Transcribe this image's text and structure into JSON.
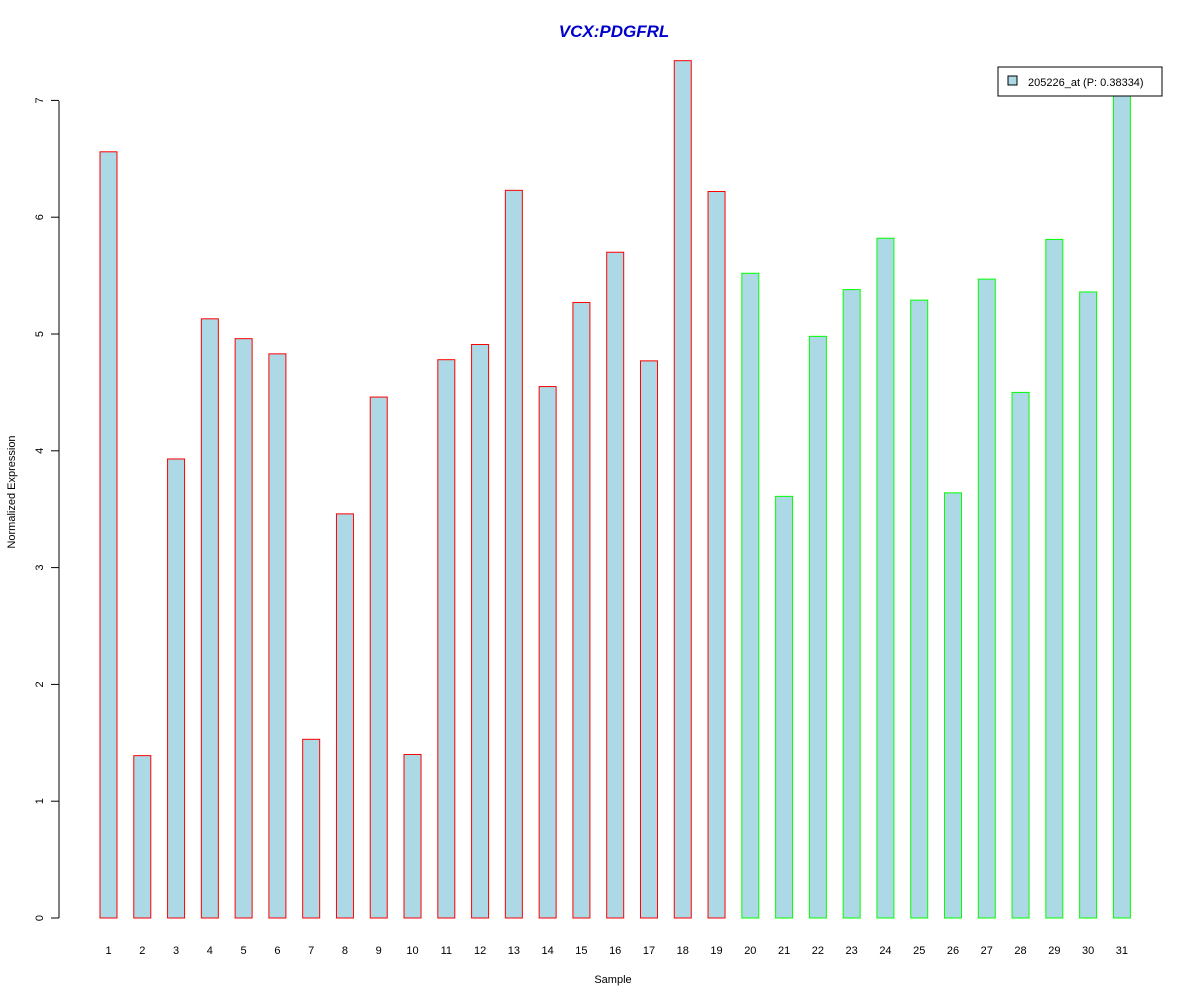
{
  "chart_data": {
    "type": "bar",
    "title": "VCX:PDGFRL",
    "xlabel": "Sample",
    "ylabel": "Normalized Expression",
    "ylim": [
      0,
      7.35
    ],
    "yticks": [
      0,
      1,
      2,
      3,
      4,
      5,
      6,
      7
    ],
    "grid": false,
    "legend_position": "top-right",
    "categories": [
      "1",
      "2",
      "3",
      "4",
      "5",
      "6",
      "7",
      "8",
      "9",
      "10",
      "11",
      "12",
      "13",
      "14",
      "15",
      "16",
      "17",
      "18",
      "19",
      "20",
      "21",
      "22",
      "23",
      "24",
      "25",
      "26",
      "27",
      "28",
      "29",
      "30",
      "31"
    ],
    "series": [
      {
        "name": "205226_at (P: 0.38334)",
        "values": [
          6.56,
          1.39,
          3.93,
          5.13,
          4.96,
          4.83,
          1.53,
          3.46,
          4.46,
          1.4,
          4.78,
          4.91,
          6.23,
          4.55,
          5.27,
          5.7,
          4.77,
          7.34,
          6.22,
          5.52,
          3.61,
          4.98,
          5.38,
          5.82,
          5.29,
          3.64,
          5.47,
          4.5,
          5.81,
          5.36,
          7.05
        ],
        "fill_color": "#ADD8E6"
      }
    ],
    "bar_groups": [
      {
        "from_index": 0,
        "to_index": 18,
        "border_color": "#FF0000"
      },
      {
        "from_index": 19,
        "to_index": 30,
        "border_color": "#00FF00"
      }
    ],
    "colors": {
      "title": "#0000CD",
      "axis": "#000000",
      "legend_border": "#000000"
    }
  }
}
